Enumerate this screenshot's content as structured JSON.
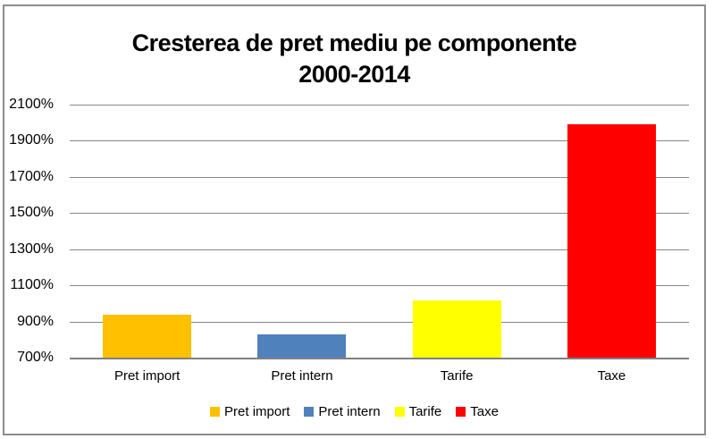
{
  "title": {
    "line1": "Cresterea de pret mediu pe componente",
    "line2": "2000-2014"
  },
  "chart_data": {
    "type": "bar",
    "title": "Cresterea de pret mediu pe componente 2000-2014",
    "xlabel": "",
    "ylabel": "",
    "categories": [
      "Pret import",
      "Pret intern",
      "Tarife",
      "Taxe"
    ],
    "values": [
      940,
      830,
      1015,
      1990
    ],
    "unit": "%",
    "bar_colors": [
      "#FFC000",
      "#4F81BD",
      "#FFFF00",
      "#FF0000"
    ],
    "ylim": [
      700,
      2100
    ],
    "ytick_step": 200,
    "yticks": [
      700,
      900,
      1100,
      1300,
      1500,
      1700,
      1900,
      2100
    ],
    "ytick_labels": [
      "700%",
      "900%",
      "1100%",
      "1300%",
      "1500%",
      "1700%",
      "1900%",
      "2100%"
    ],
    "grid": true,
    "legend": {
      "position": "bottom",
      "items": [
        {
          "label": "Pret import",
          "color": "#FFC000"
        },
        {
          "label": "Pret intern",
          "color": "#4F81BD"
        },
        {
          "label": "Tarife",
          "color": "#FFFF00"
        },
        {
          "label": "Taxe",
          "color": "#FF0000"
        }
      ]
    }
  },
  "colors": {
    "background": "#FFFFFF",
    "frame_border": "#8C8C8C",
    "gridline": "#878787",
    "axis_line": "#808080",
    "text": "#000000"
  }
}
